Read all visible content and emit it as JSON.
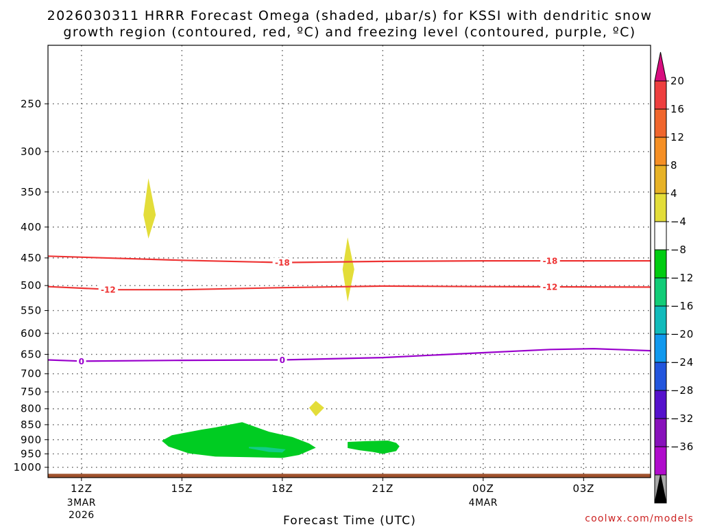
{
  "chart_data": {
    "type": "contour",
    "title_line1": "2026030311 HRRR Forecast Omega (shaded, µbar/s) for KSSI with dendritic snow",
    "title_line2": "growth region (contoured, red, ºC) and freezing level (contoured, purple, ºC)",
    "xlabel": "Forecast Time (UTC)",
    "ylabel": "",
    "credit": "coolwx.com/models",
    "x_range_hours": [
      11,
      29
    ],
    "y_range_mb": [
      1040,
      200
    ],
    "x_ticks": [
      {
        "hour": 12,
        "label": "12Z",
        "sub": [
          "3MAR",
          "2026"
        ]
      },
      {
        "hour": 15,
        "label": "15Z",
        "sub": []
      },
      {
        "hour": 18,
        "label": "18Z",
        "sub": []
      },
      {
        "hour": 21,
        "label": "21Z",
        "sub": []
      },
      {
        "hour": 24,
        "label": "00Z",
        "sub": [
          "4MAR"
        ]
      },
      {
        "hour": 27,
        "label": "03Z",
        "sub": []
      }
    ],
    "y_ticks": [
      250,
      300,
      350,
      400,
      450,
      500,
      550,
      600,
      650,
      700,
      750,
      800,
      850,
      900,
      950,
      1000
    ],
    "contours": [
      {
        "name": "-18C",
        "color": "#ee3333",
        "label": "-18",
        "label_hours": [
          18,
          26
        ],
        "points": [
          [
            11,
            447
          ],
          [
            15,
            454
          ],
          [
            18,
            458
          ],
          [
            21,
            456
          ],
          [
            24,
            455
          ],
          [
            29,
            455
          ]
        ]
      },
      {
        "name": "-12C",
        "color": "#ee3333",
        "label": "-12",
        "label_hours": [
          12.8,
          26
        ],
        "points": [
          [
            11,
            502
          ],
          [
            13,
            508
          ],
          [
            15,
            508
          ],
          [
            18,
            504
          ],
          [
            21,
            501
          ],
          [
            24,
            502
          ],
          [
            29,
            503
          ]
        ]
      },
      {
        "name": "0C freezing level",
        "color": "#9900cc",
        "label": "0",
        "label_hours": [
          12,
          18
        ],
        "points": [
          [
            11,
            664
          ],
          [
            12,
            667
          ],
          [
            15,
            665
          ],
          [
            18,
            664
          ],
          [
            21,
            658
          ],
          [
            24,
            646
          ],
          [
            26,
            638
          ],
          [
            27.3,
            636
          ],
          [
            29,
            641
          ]
        ]
      }
    ],
    "shaded_areas": [
      {
        "range": "4 to 8",
        "color": "#e3dd39",
        "points": [
          [
            13.85,
            382
          ],
          [
            14.0,
            332
          ],
          [
            14.22,
            382
          ],
          [
            14.0,
            418
          ]
        ]
      },
      {
        "range": "4 to 8",
        "color": "#e3dd39",
        "points": [
          [
            19.8,
            470
          ],
          [
            19.95,
            416
          ],
          [
            20.15,
            470
          ],
          [
            19.95,
            532
          ]
        ]
      },
      {
        "range": "4 to 8",
        "color": "#e3dd39",
        "points": [
          [
            18.8,
            797
          ],
          [
            19.0,
            776
          ],
          [
            19.25,
            797
          ],
          [
            19.0,
            823
          ]
        ]
      },
      {
        "range": "-8 to -4",
        "color": "#00cc22",
        "points": [
          [
            14.4,
            904
          ],
          [
            14.7,
            885
          ],
          [
            15.6,
            866
          ],
          [
            16.0,
            859
          ],
          [
            16.8,
            842
          ],
          [
            17.6,
            873
          ],
          [
            18.3,
            891
          ],
          [
            18.8,
            913
          ],
          [
            19.0,
            928
          ],
          [
            18.5,
            954
          ],
          [
            18.0,
            965
          ],
          [
            17.0,
            962
          ],
          [
            16.0,
            960
          ],
          [
            15.2,
            948
          ],
          [
            14.6,
            924
          ]
        ]
      },
      {
        "range": "-12 to -8",
        "color": "#11cc88",
        "points": [
          [
            17.0,
            925
          ],
          [
            17.5,
            926
          ],
          [
            18.1,
            934
          ],
          [
            18.0,
            945
          ],
          [
            17.6,
            943
          ],
          [
            17.0,
            930
          ]
        ]
      },
      {
        "range": "-8 to -4",
        "color": "#00cc22",
        "points": [
          [
            19.95,
            908
          ],
          [
            20.5,
            905
          ],
          [
            21.15,
            903
          ],
          [
            21.4,
            911
          ],
          [
            21.5,
            923
          ],
          [
            21.4,
            940
          ],
          [
            21.0,
            950
          ],
          [
            20.7,
            943
          ],
          [
            20.3,
            937
          ],
          [
            19.95,
            929
          ]
        ]
      }
    ],
    "terrain": {
      "color": "#a0522d",
      "pressure_mb": 1025
    },
    "colorbar": {
      "labels": [
        "20",
        "16",
        "12",
        "8",
        "4",
        "−4",
        "−8",
        "−12",
        "−16",
        "−20",
        "−24",
        "−28",
        "−32",
        "−36"
      ],
      "colors": [
        "#d80d7f",
        "#ee3f3f",
        "#f0662d",
        "#f58f24",
        "#e7b226",
        "#e3dd39",
        "#ffffff",
        "#00cc11",
        "#11cc77",
        "#11bbbb",
        "#1199ee",
        "#2255dd",
        "#5511cc",
        "#8811bb",
        "#b00ccc",
        "#a8a8a8",
        "#000000"
      ]
    }
  }
}
